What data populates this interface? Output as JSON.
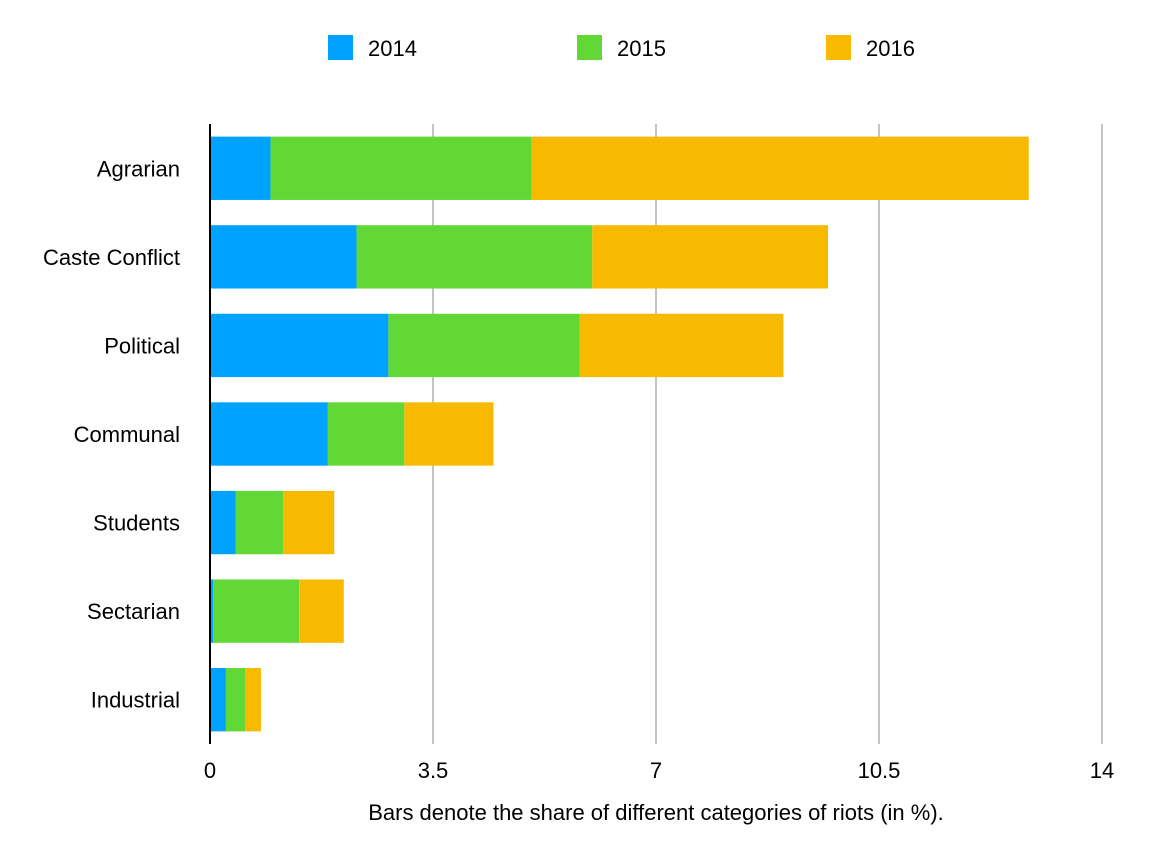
{
  "chart_data": {
    "type": "bar",
    "orientation": "horizontal",
    "stacked": true,
    "title": "",
    "xlabel": "Bars denote the share of different categories of riots (in %).",
    "ylabel": "",
    "xlim": [
      0,
      14
    ],
    "x_ticks": [
      0,
      3.5,
      7,
      10.5,
      14
    ],
    "x_tick_labels": [
      "0",
      "3.5",
      "7",
      "10.5",
      "14"
    ],
    "grid": "vertical",
    "legend_position": "top",
    "categories": [
      "Agrarian",
      "Caste Conflict",
      "Political",
      "Communal",
      "Students",
      "Sectarian",
      "Industrial"
    ],
    "series": [
      {
        "name": "2014",
        "color": "#00A2FF",
        "values": [
          0.95,
          2.3,
          2.8,
          1.85,
          0.4,
          0.05,
          0.25
        ]
      },
      {
        "name": "2015",
        "color": "#61D836",
        "values": [
          4.1,
          3.7,
          3.0,
          1.2,
          0.75,
          1.35,
          0.3
        ]
      },
      {
        "name": "2016",
        "color": "#F8BA00",
        "values": [
          7.8,
          3.7,
          3.2,
          1.4,
          0.8,
          0.7,
          0.25
        ]
      }
    ]
  }
}
